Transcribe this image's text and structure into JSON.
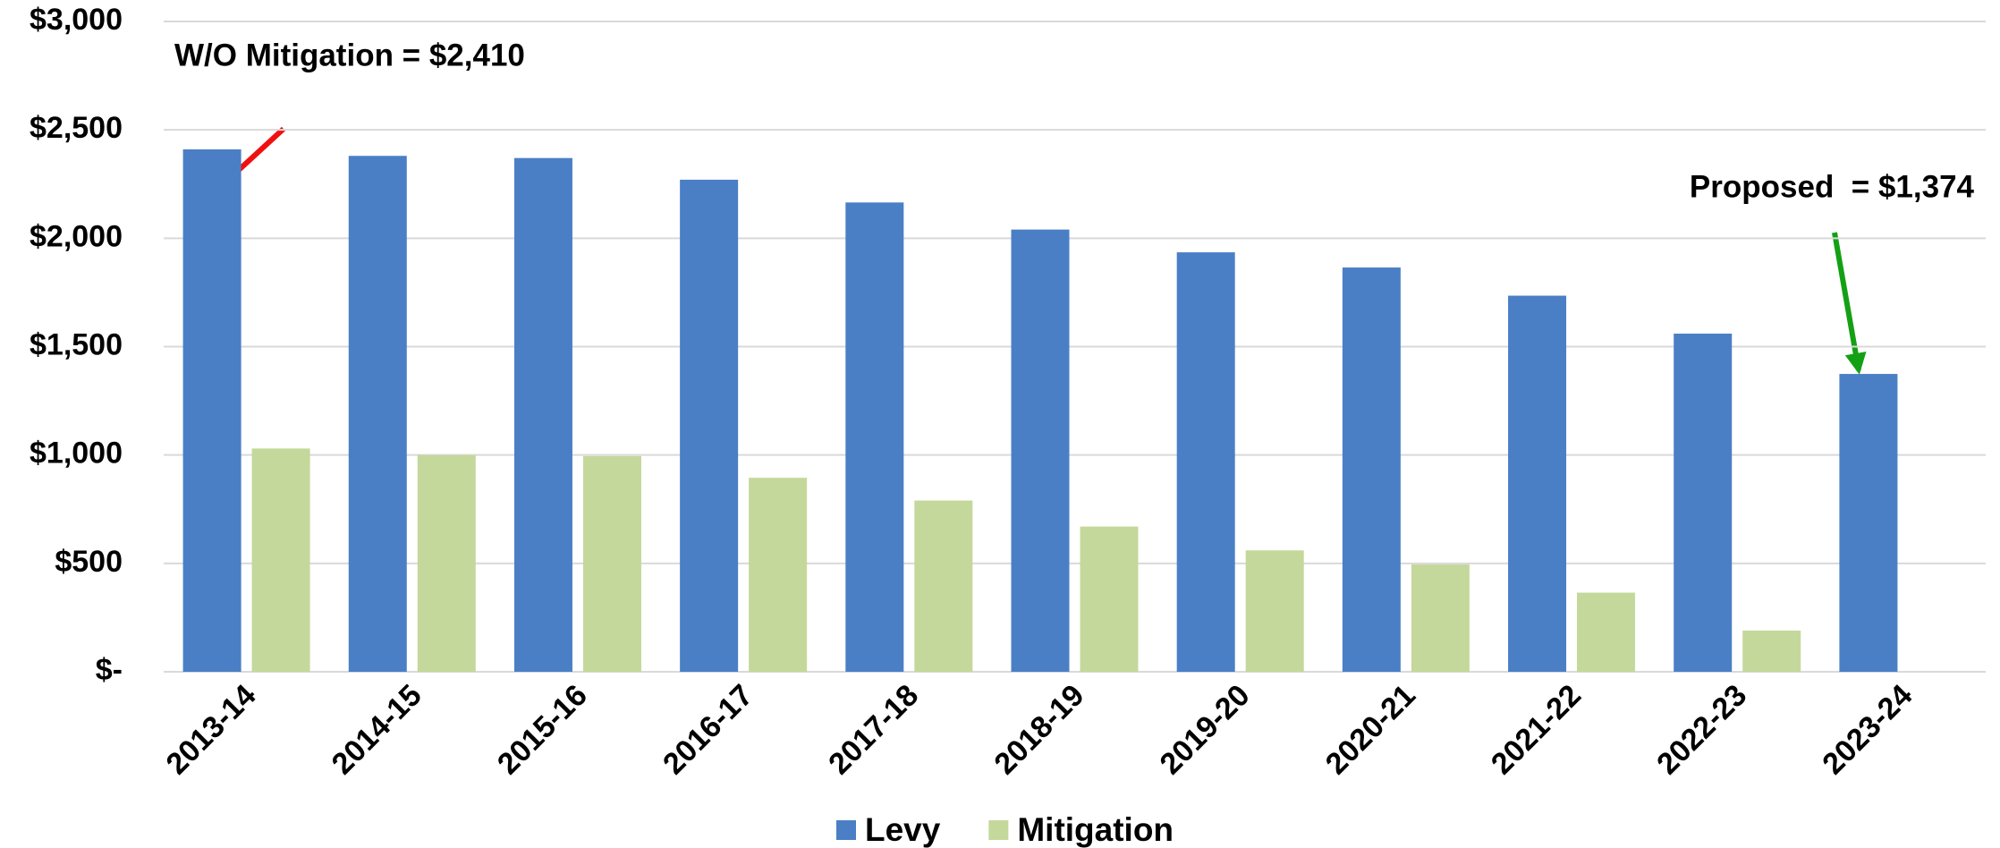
{
  "chart_data": {
    "type": "bar",
    "categories": [
      "2013-14",
      "2014-15",
      "2015-16",
      "2016-17",
      "2017-18",
      "2018-19",
      "2019-20",
      "2020-21",
      "2021-22",
      "2022-23",
      "2023-24"
    ],
    "series": [
      {
        "name": "Levy",
        "color": "#4a7fc6",
        "values": [
          2410,
          2380,
          2370,
          2270,
          2165,
          2040,
          1935,
          1865,
          1735,
          1560,
          1374
        ]
      },
      {
        "name": "Mitigation",
        "color": "#c4d89b",
        "values": [
          1030,
          1000,
          995,
          895,
          790,
          670,
          560,
          495,
          365,
          190,
          null
        ]
      }
    ],
    "ylim": [
      0,
      3000
    ],
    "yticks": [
      {
        "value": 0,
        "label": "$-"
      },
      {
        "value": 500,
        "label": "$500"
      },
      {
        "value": 1000,
        "label": "$1,000"
      },
      {
        "value": 1500,
        "label": "$1,500"
      },
      {
        "value": 2000,
        "label": "$2,000"
      },
      {
        "value": 2500,
        "label": "$2,500"
      },
      {
        "value": 3000,
        "label": "$3,000"
      }
    ],
    "grid": true,
    "annotations": [
      "W/O Mitigation = $2,410",
      "Proposed  = $1,374"
    ],
    "legend": "bottom"
  }
}
